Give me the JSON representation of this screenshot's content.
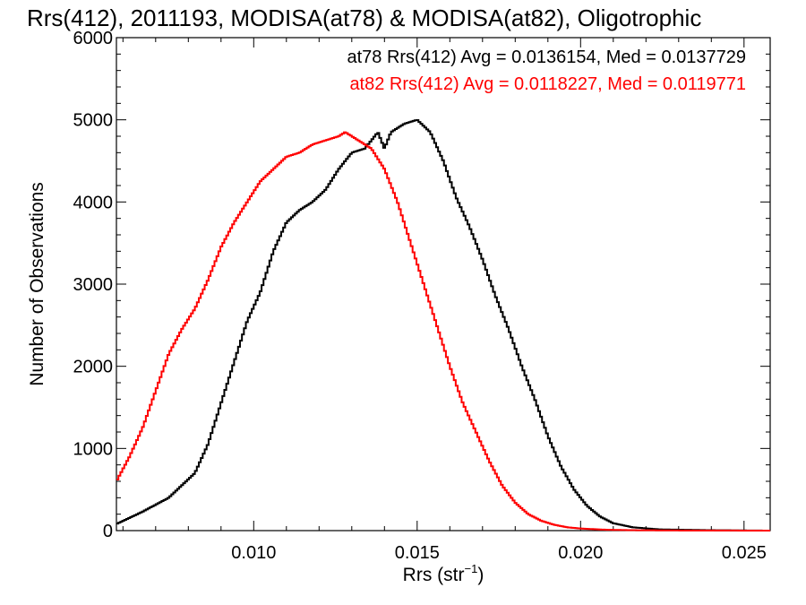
{
  "chart_data": {
    "type": "line",
    "title": "Rrs(412), 2011193, MODISA(at78) & MODISA(at82), Oligotrophic",
    "xlabel": "Rrs (str",
    "xlabel_sup": "−1",
    "xlabel_close": ")",
    "ylabel": "Number of Observations",
    "xlim": [
      0.0058,
      0.0258
    ],
    "ylim": [
      0,
      6000
    ],
    "xticks": [
      0.01,
      0.015,
      0.02,
      0.025
    ],
    "xtick_labels": [
      "0.010",
      "0.015",
      "0.020",
      "0.025"
    ],
    "yticks": [
      0,
      1000,
      2000,
      3000,
      4000,
      5000,
      6000
    ],
    "ytick_labels": [
      "0",
      "1000",
      "2000",
      "3000",
      "4000",
      "5000",
      "6000"
    ],
    "legend_placement": "top-right",
    "series": [
      {
        "name": "at78",
        "color": "#000000",
        "legend": "at78 Rrs(412) Avg = 0.0136154, Med = 0.0137729",
        "x": [
          0.0058,
          0.0066,
          0.0074,
          0.0082,
          0.0086,
          0.009,
          0.0094,
          0.0098,
          0.0102,
          0.0106,
          0.011,
          0.0114,
          0.0118,
          0.0122,
          0.0126,
          0.013,
          0.0134,
          0.0138,
          0.014,
          0.0142,
          0.0146,
          0.015,
          0.0154,
          0.0158,
          0.0162,
          0.0166,
          0.017,
          0.0174,
          0.0178,
          0.0182,
          0.0186,
          0.019,
          0.0194,
          0.0198,
          0.0202,
          0.0206,
          0.021,
          0.0216,
          0.0224,
          0.024,
          0.0258
        ],
        "y": [
          80,
          230,
          400,
          700,
          1050,
          1550,
          2050,
          2550,
          2900,
          3400,
          3750,
          3900,
          4000,
          4150,
          4400,
          4600,
          4650,
          4850,
          4650,
          4850,
          4950,
          5000,
          4850,
          4500,
          4050,
          3700,
          3300,
          2850,
          2450,
          2000,
          1600,
          1150,
          780,
          500,
          300,
          170,
          90,
          40,
          15,
          5,
          0
        ]
      },
      {
        "name": "at82",
        "color": "#ff0000",
        "legend": "at82 Rrs(412) Avg = 0.0118227, Med = 0.0119771",
        "x": [
          0.0058,
          0.0062,
          0.0066,
          0.007,
          0.0074,
          0.0078,
          0.0082,
          0.0086,
          0.009,
          0.0094,
          0.0098,
          0.0102,
          0.0106,
          0.011,
          0.0114,
          0.0118,
          0.0122,
          0.0126,
          0.0128,
          0.0132,
          0.0136,
          0.014,
          0.0144,
          0.0148,
          0.0152,
          0.0156,
          0.016,
          0.0164,
          0.0168,
          0.0172,
          0.0176,
          0.018,
          0.0184,
          0.0188,
          0.0192,
          0.0196,
          0.02,
          0.0208,
          0.0216,
          0.023,
          0.0258
        ],
        "y": [
          600,
          900,
          1250,
          1700,
          2150,
          2450,
          2700,
          3050,
          3450,
          3750,
          4000,
          4250,
          4400,
          4550,
          4600,
          4700,
          4750,
          4800,
          4850,
          4750,
          4650,
          4400,
          4000,
          3500,
          3000,
          2500,
          2000,
          1550,
          1200,
          850,
          550,
          340,
          200,
          120,
          70,
          40,
          25,
          10,
          5,
          2,
          0
        ]
      }
    ]
  }
}
